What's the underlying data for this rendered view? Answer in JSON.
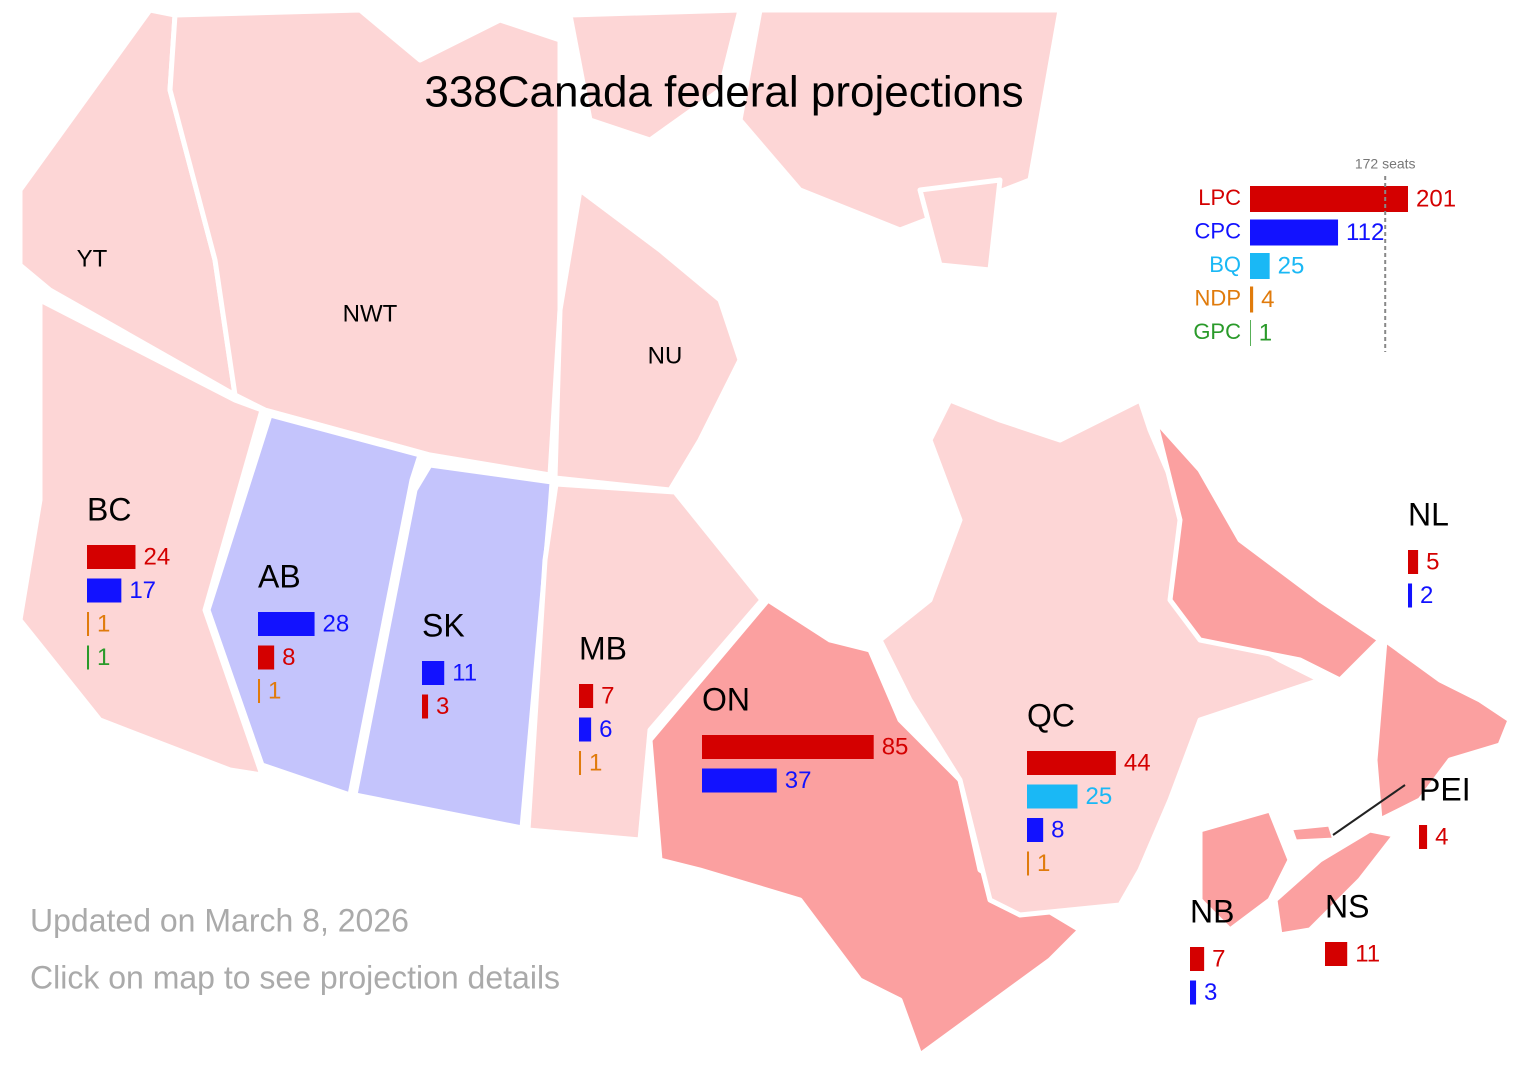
{
  "title": "338Canada federal projections",
  "majority": {
    "value": 172,
    "label": "172 seats"
  },
  "national": [
    {
      "party": "LPC",
      "color": "#d40000",
      "seats": 201
    },
    {
      "party": "CPC",
      "color": "#1212ff",
      "seats": 112
    },
    {
      "party": "BQ",
      "color": "#1ab8f5",
      "seats": 25
    },
    {
      "party": "NDP",
      "color": "#e07b0c",
      "seats": 4
    },
    {
      "party": "GPC",
      "color": "#2a9a2a",
      "seats": 1
    }
  ],
  "territories": [
    "YT",
    "NWT",
    "NU"
  ],
  "provinces": [
    {
      "name": "BC",
      "bars": [
        {
          "color": "#d40000",
          "seats": 24
        },
        {
          "color": "#1212ff",
          "seats": 17
        },
        {
          "color": "#e07b0c",
          "seats": 1
        },
        {
          "color": "#2a9a2a",
          "seats": 1
        }
      ]
    },
    {
      "name": "AB",
      "bars": [
        {
          "color": "#1212ff",
          "seats": 28
        },
        {
          "color": "#d40000",
          "seats": 8
        },
        {
          "color": "#e07b0c",
          "seats": 1
        }
      ]
    },
    {
      "name": "SK",
      "bars": [
        {
          "color": "#1212ff",
          "seats": 11
        },
        {
          "color": "#d40000",
          "seats": 3
        }
      ]
    },
    {
      "name": "MB",
      "bars": [
        {
          "color": "#d40000",
          "seats": 7
        },
        {
          "color": "#1212ff",
          "seats": 6
        },
        {
          "color": "#e07b0c",
          "seats": 1
        }
      ]
    },
    {
      "name": "ON",
      "bars": [
        {
          "color": "#d40000",
          "seats": 85
        },
        {
          "color": "#1212ff",
          "seats": 37
        }
      ]
    },
    {
      "name": "QC",
      "bars": [
        {
          "color": "#d40000",
          "seats": 44
        },
        {
          "color": "#1ab8f5",
          "seats": 25
        },
        {
          "color": "#1212ff",
          "seats": 8
        },
        {
          "color": "#e07b0c",
          "seats": 1
        }
      ]
    },
    {
      "name": "NL",
      "bars": [
        {
          "color": "#d40000",
          "seats": 5
        },
        {
          "color": "#1212ff",
          "seats": 2
        }
      ]
    },
    {
      "name": "PEI",
      "bars": [
        {
          "color": "#d40000",
          "seats": 4
        }
      ]
    },
    {
      "name": "NB",
      "bars": [
        {
          "color": "#d40000",
          "seats": 7
        },
        {
          "color": "#1212ff",
          "seats": 3
        }
      ]
    },
    {
      "name": "NS",
      "bars": [
        {
          "color": "#d40000",
          "seats": 11
        }
      ]
    }
  ],
  "footer": [
    "Updated on March 8, 2026",
    "Click on map to see projection details"
  ]
}
